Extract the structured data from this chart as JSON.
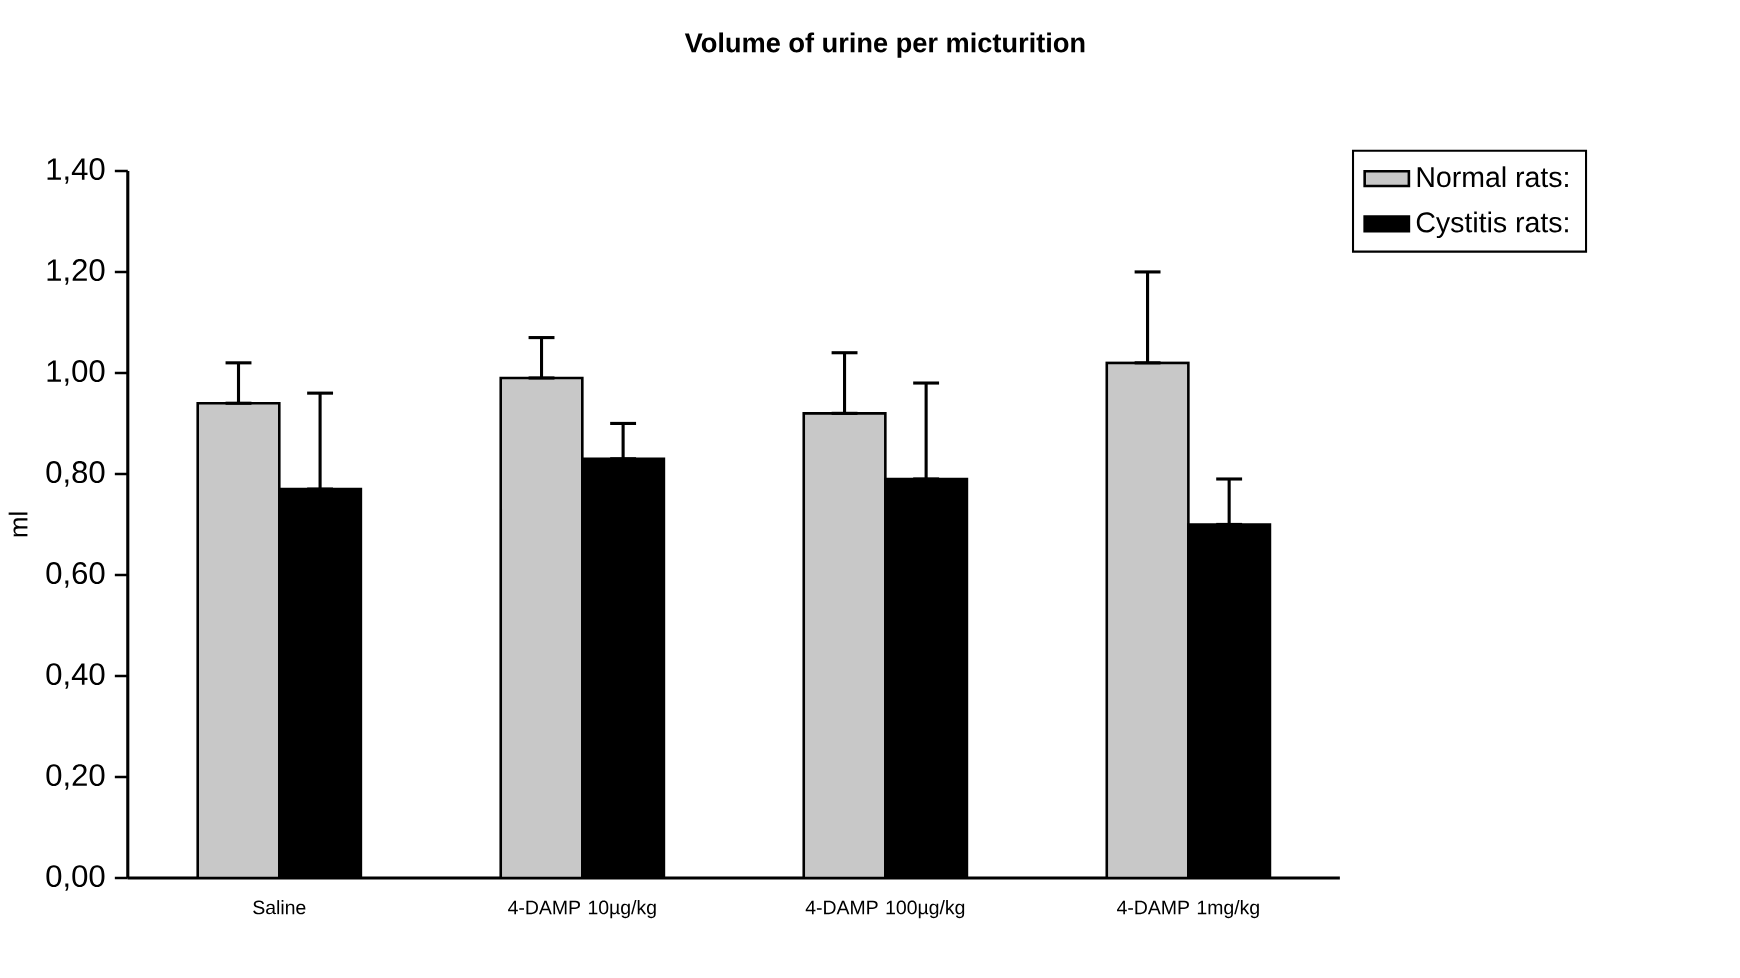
{
  "chart_data": {
    "type": "bar",
    "title": "Volume of urine per micturition",
    "ylabel": "ml",
    "categories": [
      "Saline",
      "4-DAMP 10µg/kg",
      "4-DAMP 100µg/kg",
      "4-DAMP 1mg/kg"
    ],
    "series": [
      {
        "name": "Normal rats:",
        "color": "#c8c8c8",
        "values": [
          0.94,
          0.99,
          0.92,
          1.02
        ],
        "errors": [
          [
            0.94,
            1.02
          ],
          [
            0.99,
            1.07
          ],
          [
            0.92,
            1.04
          ],
          [
            1.02,
            1.2
          ]
        ]
      },
      {
        "name": "Cystitis rats:",
        "color": "#000000",
        "values": [
          0.77,
          0.83,
          0.79,
          0.7
        ],
        "errors": [
          [
            0.77,
            0.96
          ],
          [
            0.83,
            0.9
          ],
          [
            0.79,
            0.98
          ],
          [
            0.7,
            0.79
          ]
        ]
      }
    ],
    "ylim": [
      0,
      1.4
    ],
    "yticks": [
      {
        "value": 0,
        "label": "0,00"
      },
      {
        "value": 0.2,
        "label": "0,20"
      },
      {
        "value": 0.4,
        "label": "0,40"
      },
      {
        "value": 0.6,
        "label": "0,60"
      },
      {
        "value": 0.8,
        "label": "0,80"
      },
      {
        "value": 1.0,
        "label": "1,00"
      },
      {
        "value": 1.2,
        "label": "1,20"
      },
      {
        "value": 1.4,
        "label": "1,40"
      }
    ],
    "legend": "top right",
    "grid": false
  }
}
